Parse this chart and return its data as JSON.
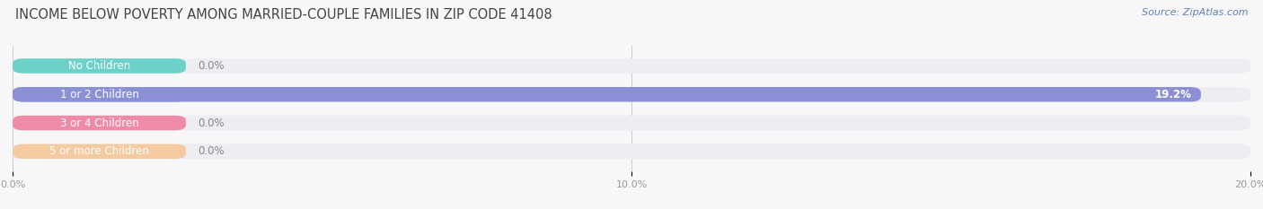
{
  "title": "INCOME BELOW POVERTY AMONG MARRIED-COUPLE FAMILIES IN ZIP CODE 41408",
  "source": "Source: ZipAtlas.com",
  "categories": [
    "No Children",
    "1 or 2 Children",
    "3 or 4 Children",
    "5 or more Children"
  ],
  "values": [
    0.0,
    19.2,
    0.0,
    0.0
  ],
  "bar_colors": [
    "#5ECFC5",
    "#8B8FD4",
    "#F080A0",
    "#F5C897"
  ],
  "bar_bg_color": "#EDEDF2",
  "label_bg_colors": [
    "#5ECFC5",
    "#8B8FD4",
    "#F080A0",
    "#F5C897"
  ],
  "xlim": [
    0,
    20.0
  ],
  "xticks": [
    0.0,
    10.0,
    20.0
  ],
  "xtick_labels": [
    "0.0%",
    "10.0%",
    "20.0%"
  ],
  "background_color": "#F7F7FA",
  "title_fontsize": 10.5,
  "label_fontsize": 8.5,
  "value_fontsize": 8.5,
  "source_fontsize": 8
}
